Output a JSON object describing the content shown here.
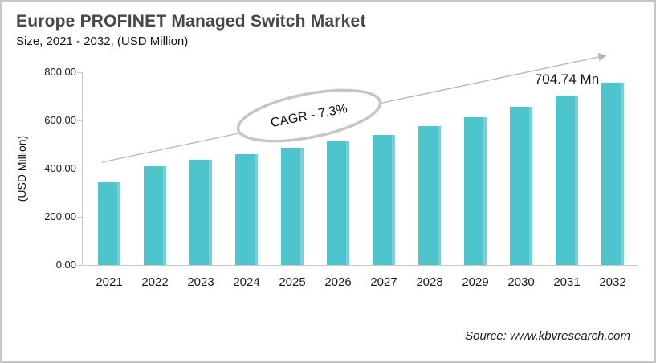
{
  "header": {
    "title": "Europe PROFINET Managed Switch Market",
    "subtitle": "Size, 2021 - 2032, (USD Million)"
  },
  "chart_data": {
    "type": "bar",
    "title": "Europe PROFINET Managed Switch Market Size, 2021 - 2032, (USD Million)",
    "categories": [
      "2021",
      "2022",
      "2023",
      "2024",
      "2025",
      "2026",
      "2027",
      "2028",
      "2029",
      "2030",
      "2031",
      "2032"
    ],
    "values": [
      343,
      410,
      437,
      461,
      486,
      512,
      540,
      578,
      612,
      657,
      704.74,
      756.19
    ],
    "xlabel": "",
    "ylabel": "(USD Million)",
    "ylim": [
      0,
      800
    ],
    "yticks": [
      {
        "value": 0,
        "label": "0.00"
      },
      {
        "value": 200,
        "label": "200.00"
      },
      {
        "value": 400,
        "label": "400.00"
      },
      {
        "value": 600,
        "label": "600.00"
      },
      {
        "value": 800,
        "label": "800.00"
      }
    ],
    "grid": false,
    "legend": false,
    "bar_color": "#4EC4CC",
    "annotations": {
      "cagr_label": "CAGR - 7.3%",
      "value_label": "704.74 Mn",
      "value_label_category": "2031",
      "trend_arrow": "rising straight arrow from above 2021 bar to top right"
    }
  },
  "footer": {
    "source": "Source: www.kbvresearch.com"
  },
  "colors": {
    "bar": "#4EC4CC",
    "axis": "#C9C9C9",
    "arrow": "#B5B5B5",
    "ellipse_stroke": "#C6C6C6",
    "title_text": "#474747",
    "text": "#1A1A1A"
  }
}
